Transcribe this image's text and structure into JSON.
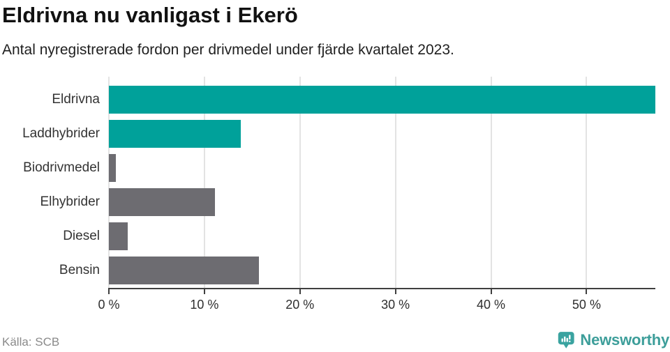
{
  "header": {
    "title": "Eldrivna nu vanligast i Ekerö",
    "subtitle": "Antal nyregistrerade fordon per drivmedel under fjärde kvartalet 2023."
  },
  "chart_data": {
    "type": "bar",
    "orientation": "horizontal",
    "title": "Eldrivna nu vanligast i Ekerö",
    "subtitle": "Antal nyregistrerade fordon per drivmedel under fjärde kvartalet 2023.",
    "categories": [
      "Eldrivna",
      "Laddhybrider",
      "Biodrivmedel",
      "Elhybrider",
      "Diesel",
      "Bensin"
    ],
    "values": [
      57.2,
      13.8,
      0.7,
      11.1,
      2.0,
      15.7
    ],
    "unit": "%",
    "bar_colors": [
      "#00a19a",
      "#00a19a",
      "#6d6c71",
      "#6d6c71",
      "#6d6c71",
      "#6d6c71"
    ],
    "xlim": [
      0,
      57.2
    ],
    "x_ticks": [
      0,
      10,
      20,
      30,
      40,
      50
    ],
    "x_tick_labels": [
      "0 %",
      "10 %",
      "20 %",
      "30 %",
      "40 %",
      "50 %"
    ],
    "grid": true,
    "legend": false
  },
  "footer": {
    "source": "Källa: SCB",
    "brand": "Newsworthy"
  },
  "colors": {
    "accent_teal": "#00a19a",
    "muted_gray": "#6d6c71",
    "gridline": "#e3e3e3",
    "axis": "#3f3f3f",
    "brand_teal": "#3d9e9a",
    "source_gray": "#8a8a8a"
  }
}
